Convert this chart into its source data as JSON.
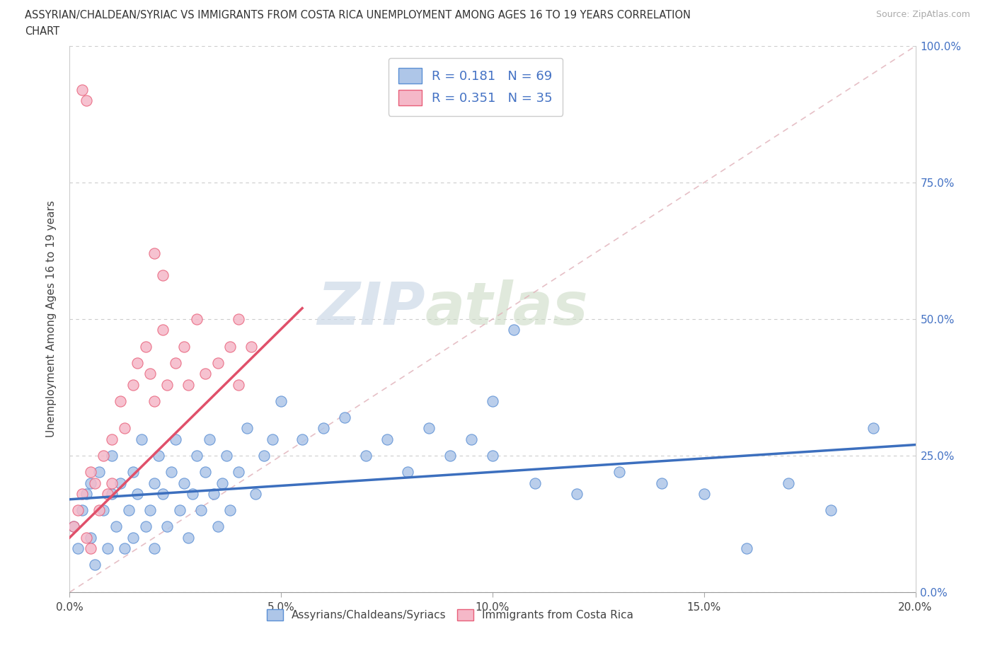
{
  "title_line1": "ASSYRIAN/CHALDEAN/SYRIAC VS IMMIGRANTS FROM COSTA RICA UNEMPLOYMENT AMONG AGES 16 TO 19 YEARS CORRELATION",
  "title_line2": "CHART",
  "source": "Source: ZipAtlas.com",
  "xlabel_ticks": [
    "0.0%",
    "5.0%",
    "10.0%",
    "15.0%",
    "20.0%"
  ],
  "xtick_vals": [
    0.0,
    0.05,
    0.1,
    0.15,
    0.2
  ],
  "ylabel_ticks": [
    "0.0%",
    "25.0%",
    "50.0%",
    "75.0%",
    "100.0%"
  ],
  "ytick_vals": [
    0.0,
    0.25,
    0.5,
    0.75,
    1.0
  ],
  "xlim": [
    0.0,
    0.2
  ],
  "ylim": [
    0.0,
    1.0
  ],
  "ylabel": "Unemployment Among Ages 16 to 19 years",
  "legend1_label": "R = 0.181   N = 69",
  "legend2_label": "R = 0.351   N = 35",
  "legend_label_assyrian": "Assyrians/Chaldeans/Syriacs",
  "legend_label_costarica": "Immigrants from Costa Rica",
  "color_blue_fill": "#aec6e8",
  "color_blue_edge": "#5b8fd4",
  "color_pink_fill": "#f5b8c8",
  "color_pink_edge": "#e8607a",
  "color_blue_line": "#3c6fbe",
  "color_pink_line": "#e0506a",
  "color_diag_line": "#e0b0b8",
  "watermark_zip": "ZIP",
  "watermark_atlas": "atlas",
  "blue_scatter_x": [
    0.001,
    0.002,
    0.003,
    0.004,
    0.005,
    0.005,
    0.006,
    0.007,
    0.008,
    0.009,
    0.01,
    0.01,
    0.011,
    0.012,
    0.013,
    0.014,
    0.015,
    0.015,
    0.016,
    0.017,
    0.018,
    0.019,
    0.02,
    0.02,
    0.021,
    0.022,
    0.023,
    0.024,
    0.025,
    0.026,
    0.027,
    0.028,
    0.029,
    0.03,
    0.031,
    0.032,
    0.033,
    0.034,
    0.035,
    0.036,
    0.037,
    0.038,
    0.04,
    0.042,
    0.044,
    0.046,
    0.048,
    0.05,
    0.055,
    0.06,
    0.065,
    0.07,
    0.075,
    0.08,
    0.085,
    0.09,
    0.095,
    0.1,
    0.105,
    0.11,
    0.12,
    0.13,
    0.14,
    0.15,
    0.16,
    0.17,
    0.18,
    0.19,
    0.1
  ],
  "blue_scatter_y": [
    0.12,
    0.08,
    0.15,
    0.18,
    0.1,
    0.2,
    0.05,
    0.22,
    0.15,
    0.08,
    0.18,
    0.25,
    0.12,
    0.2,
    0.08,
    0.15,
    0.22,
    0.1,
    0.18,
    0.28,
    0.12,
    0.15,
    0.2,
    0.08,
    0.25,
    0.18,
    0.12,
    0.22,
    0.28,
    0.15,
    0.2,
    0.1,
    0.18,
    0.25,
    0.15,
    0.22,
    0.28,
    0.18,
    0.12,
    0.2,
    0.25,
    0.15,
    0.22,
    0.3,
    0.18,
    0.25,
    0.28,
    0.35,
    0.28,
    0.3,
    0.32,
    0.25,
    0.28,
    0.22,
    0.3,
    0.25,
    0.28,
    0.25,
    0.48,
    0.2,
    0.18,
    0.22,
    0.2,
    0.18,
    0.08,
    0.2,
    0.15,
    0.3,
    0.35
  ],
  "pink_scatter_x": [
    0.001,
    0.002,
    0.003,
    0.004,
    0.005,
    0.005,
    0.006,
    0.007,
    0.008,
    0.009,
    0.01,
    0.01,
    0.012,
    0.013,
    0.015,
    0.016,
    0.018,
    0.019,
    0.02,
    0.022,
    0.023,
    0.025,
    0.027,
    0.028,
    0.03,
    0.032,
    0.035,
    0.038,
    0.04,
    0.043,
    0.003,
    0.004,
    0.02,
    0.022,
    0.04
  ],
  "pink_scatter_y": [
    0.12,
    0.15,
    0.18,
    0.1,
    0.22,
    0.08,
    0.2,
    0.15,
    0.25,
    0.18,
    0.28,
    0.2,
    0.35,
    0.3,
    0.38,
    0.42,
    0.45,
    0.4,
    0.35,
    0.48,
    0.38,
    0.42,
    0.45,
    0.38,
    0.5,
    0.4,
    0.42,
    0.45,
    0.38,
    0.45,
    0.92,
    0.9,
    0.62,
    0.58,
    0.5
  ],
  "blue_trend_x": [
    0.0,
    0.2
  ],
  "blue_trend_y": [
    0.17,
    0.27
  ],
  "pink_trend_x": [
    0.0,
    0.055
  ],
  "pink_trend_y": [
    0.1,
    0.52
  ]
}
